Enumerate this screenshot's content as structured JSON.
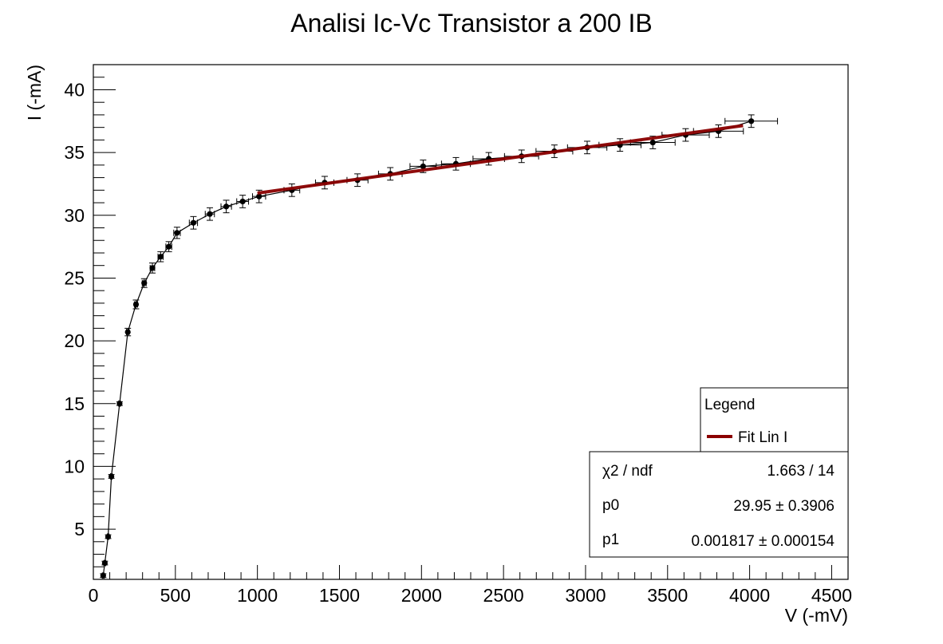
{
  "chart_data": {
    "type": "scatter",
    "title": "Analisi Ic-Vc Transistor a 200 IB",
    "xlabel": "V (-mV)",
    "ylabel": "I (-mA)",
    "xlim": [
      0,
      4600
    ],
    "ylim": [
      1,
      42
    ],
    "x_ticks": [
      "0",
      "500",
      "1000",
      "1500",
      "2000",
      "2500",
      "3000",
      "3500",
      "4000",
      "4500"
    ],
    "y_ticks": [
      "5",
      "10",
      "15",
      "20",
      "25",
      "30",
      "35",
      "40"
    ],
    "grid": false,
    "series": [
      {
        "points": [
          {
            "x": 60,
            "y": 1.3,
            "xerr": 5,
            "yerr": 0.15
          },
          {
            "x": 70,
            "y": 2.3,
            "xerr": 5,
            "yerr": 0.15
          },
          {
            "x": 90,
            "y": 4.4,
            "xerr": 5,
            "yerr": 0.15
          },
          {
            "x": 110,
            "y": 9.2,
            "xerr": 5,
            "yerr": 0.15
          },
          {
            "x": 160,
            "y": 15.0,
            "xerr": 5,
            "yerr": 0.15
          },
          {
            "x": 210,
            "y": 20.7,
            "xerr": 8,
            "yerr": 0.3
          },
          {
            "x": 260,
            "y": 22.9,
            "xerr": 10,
            "yerr": 0.35
          },
          {
            "x": 310,
            "y": 24.6,
            "xerr": 12,
            "yerr": 0.35
          },
          {
            "x": 360,
            "y": 25.8,
            "xerr": 14,
            "yerr": 0.4
          },
          {
            "x": 410,
            "y": 26.7,
            "xerr": 16,
            "yerr": 0.4
          },
          {
            "x": 460,
            "y": 27.5,
            "xerr": 18,
            "yerr": 0.4
          },
          {
            "x": 510,
            "y": 28.6,
            "xerr": 20,
            "yerr": 0.45
          },
          {
            "x": 610,
            "y": 29.4,
            "xerr": 25,
            "yerr": 0.5
          },
          {
            "x": 710,
            "y": 30.1,
            "xerr": 28,
            "yerr": 0.5
          },
          {
            "x": 810,
            "y": 30.7,
            "xerr": 32,
            "yerr": 0.5
          },
          {
            "x": 910,
            "y": 31.1,
            "xerr": 36,
            "yerr": 0.5
          },
          {
            "x": 1010,
            "y": 31.5,
            "xerr": 40,
            "yerr": 0.5
          },
          {
            "x": 1210,
            "y": 32.0,
            "xerr": 48,
            "yerr": 0.5
          },
          {
            "x": 1410,
            "y": 32.6,
            "xerr": 56,
            "yerr": 0.5
          },
          {
            "x": 1610,
            "y": 32.8,
            "xerr": 64,
            "yerr": 0.5
          },
          {
            "x": 1810,
            "y": 33.3,
            "xerr": 72,
            "yerr": 0.5
          },
          {
            "x": 2010,
            "y": 33.9,
            "xerr": 80,
            "yerr": 0.5
          },
          {
            "x": 2210,
            "y": 34.1,
            "xerr": 88,
            "yerr": 0.5
          },
          {
            "x": 2410,
            "y": 34.5,
            "xerr": 96,
            "yerr": 0.5
          },
          {
            "x": 2610,
            "y": 34.7,
            "xerr": 104,
            "yerr": 0.5
          },
          {
            "x": 2810,
            "y": 35.1,
            "xerr": 112,
            "yerr": 0.5
          },
          {
            "x": 3010,
            "y": 35.4,
            "xerr": 120,
            "yerr": 0.5
          },
          {
            "x": 3210,
            "y": 35.6,
            "xerr": 128,
            "yerr": 0.5
          },
          {
            "x": 3410,
            "y": 35.8,
            "xerr": 136,
            "yerr": 0.5
          },
          {
            "x": 3610,
            "y": 36.4,
            "xerr": 144,
            "yerr": 0.5
          },
          {
            "x": 3810,
            "y": 36.7,
            "xerr": 152,
            "yerr": 0.5
          },
          {
            "x": 4010,
            "y": 37.5,
            "xerr": 160,
            "yerr": 0.5
          }
        ],
        "color": "#000000"
      }
    ],
    "fit": {
      "name": "Fit Lin I",
      "type": "linear",
      "x_range": [
        1000,
        3960
      ],
      "p0": 29.95,
      "p1": 0.001817,
      "color": "#8b0000"
    },
    "legend": {
      "title": "Legend",
      "entries": [
        "Fit Lin I"
      ],
      "position": "bottom-right"
    },
    "stats": {
      "rows": [
        {
          "label": "χ2 / ndf",
          "value": "1.663 / 14"
        },
        {
          "label": "p0",
          "value": "29.95 ± 0.3906"
        },
        {
          "label": "p1",
          "value": "0.001817 ± 0.000154"
        }
      ]
    }
  }
}
